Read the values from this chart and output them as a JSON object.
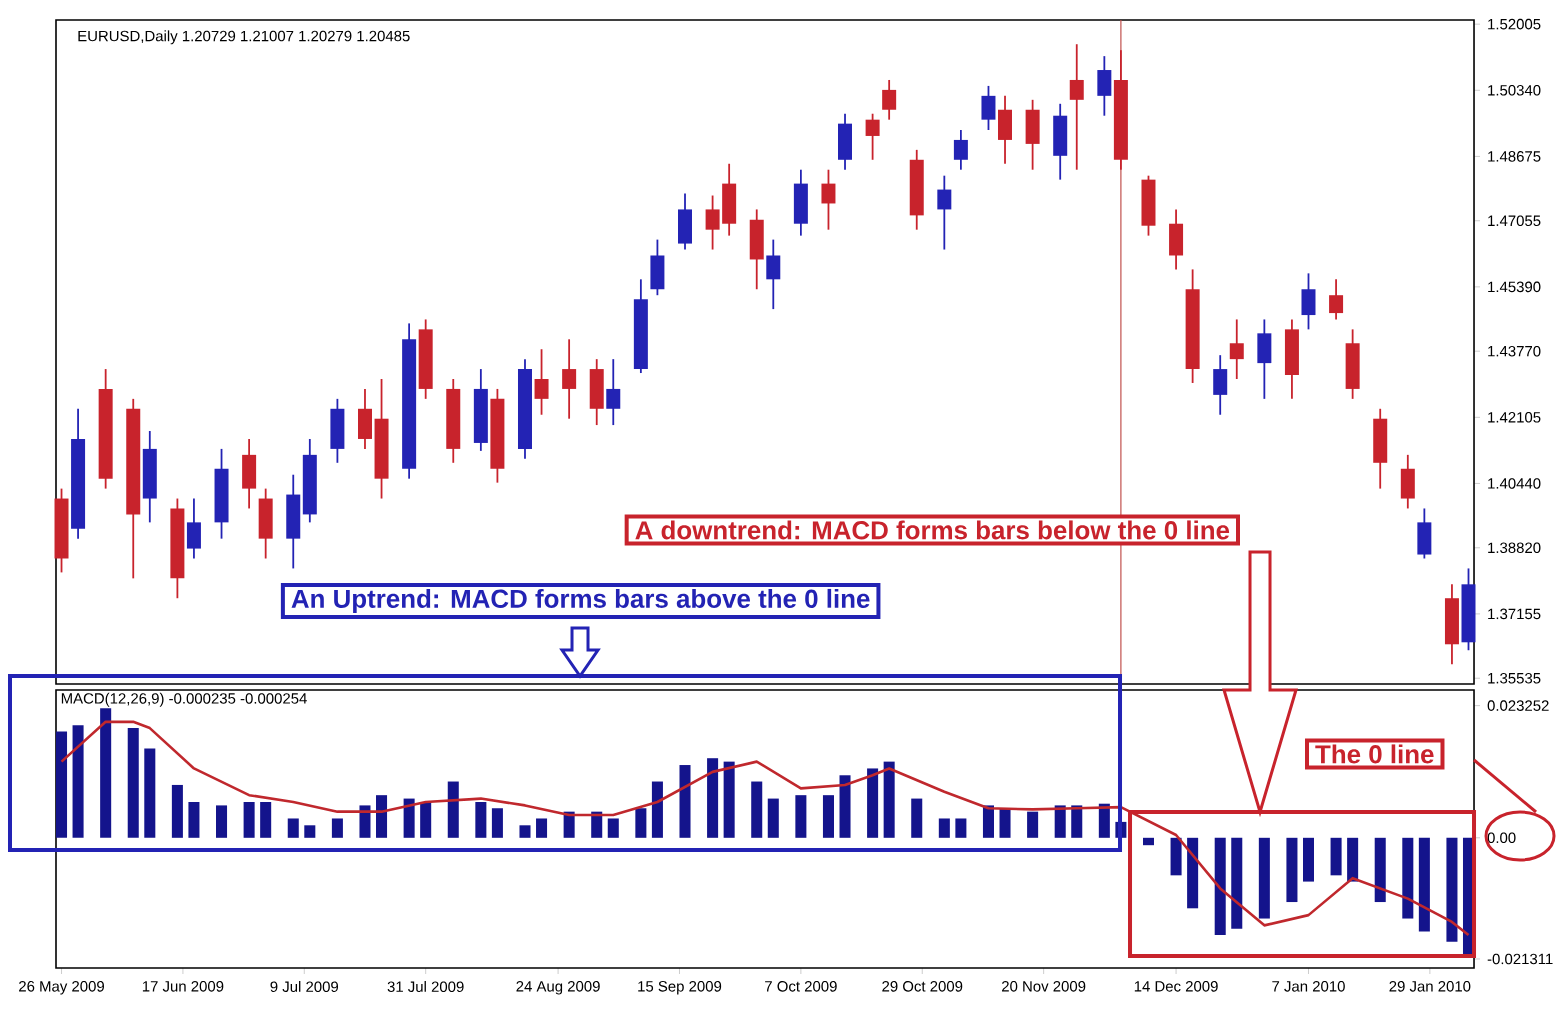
{
  "chart_data": [
    {
      "type": "candlestick",
      "title": "EURUSD,Daily  1.20729 1.21007 1.20279 1.20485",
      "x": [
        "2009-05-26",
        "2009-05-29",
        "2009-06-03",
        "2009-06-08",
        "2009-06-11",
        "2009-06-16",
        "2009-06-19",
        "2009-06-24",
        "2009-06-29",
        "2009-07-02",
        "2009-07-07",
        "2009-07-10",
        "2009-07-15",
        "2009-07-20",
        "2009-07-23",
        "2009-07-28",
        "2009-07-31",
        "2009-08-05",
        "2009-08-10",
        "2009-08-13",
        "2009-08-18",
        "2009-08-21",
        "2009-08-26",
        "2009-08-31",
        "2009-09-03",
        "2009-09-08",
        "2009-09-11",
        "2009-09-16",
        "2009-09-21",
        "2009-09-24",
        "2009-09-29",
        "2009-10-02",
        "2009-10-07",
        "2009-10-12",
        "2009-10-15",
        "2009-10-20",
        "2009-10-23",
        "2009-10-28",
        "2009-11-02",
        "2009-11-05",
        "2009-11-10",
        "2009-11-13",
        "2009-11-18",
        "2009-11-23",
        "2009-11-26",
        "2009-12-01",
        "2009-12-04",
        "2009-12-09",
        "2009-12-14",
        "2009-12-17",
        "2009-12-22",
        "2009-12-25",
        "2009-12-30",
        "2010-01-04",
        "2010-01-07",
        "2010-01-12",
        "2010-01-15",
        "2010-01-20",
        "2010-01-25",
        "2010-01-28",
        "2010-02-02",
        "2010-02-05"
      ],
      "ohlc": [
        [
          1.4006,
          1.4031,
          1.382,
          1.3855
        ],
        [
          1.393,
          1.4232,
          1.3905,
          1.4156
        ],
        [
          1.4282,
          1.4332,
          1.4031,
          1.4056
        ],
        [
          1.4232,
          1.4257,
          1.3805,
          1.3966
        ],
        [
          1.4006,
          1.4176,
          1.3946,
          1.4131
        ],
        [
          1.3981,
          1.4006,
          1.3755,
          1.3805
        ],
        [
          1.388,
          1.4006,
          1.3855,
          1.3946
        ],
        [
          1.3946,
          1.4131,
          1.3905,
          1.4081
        ],
        [
          1.4116,
          1.4156,
          1.3981,
          1.4031
        ],
        [
          1.4006,
          1.4031,
          1.3855,
          1.3905
        ],
        [
          1.3905,
          1.4066,
          1.383,
          1.4016
        ],
        [
          1.3966,
          1.4156,
          1.3946,
          1.4116
        ],
        [
          1.4131,
          1.4257,
          1.4096,
          1.4232
        ],
        [
          1.4232,
          1.4282,
          1.4131,
          1.4156
        ],
        [
          1.4207,
          1.4307,
          1.4006,
          1.4056
        ],
        [
          1.4081,
          1.4447,
          1.4056,
          1.4407
        ],
        [
          1.4432,
          1.4457,
          1.4257,
          1.4282
        ],
        [
          1.4282,
          1.4307,
          1.4096,
          1.4131
        ],
        [
          1.4146,
          1.4332,
          1.4126,
          1.4282
        ],
        [
          1.4257,
          1.4282,
          1.4046,
          1.4081
        ],
        [
          1.4131,
          1.4357,
          1.4106,
          1.4332
        ],
        [
          1.4307,
          1.4382,
          1.4217,
          1.4257
        ],
        [
          1.4332,
          1.4407,
          1.4207,
          1.4282
        ],
        [
          1.4332,
          1.4357,
          1.4191,
          1.4232
        ],
        [
          1.4232,
          1.4357,
          1.4191,
          1.4282
        ],
        [
          1.4332,
          1.4558,
          1.4322,
          1.4508
        ],
        [
          1.4533,
          1.4658,
          1.4518,
          1.4618
        ],
        [
          1.4648,
          1.4774,
          1.4633,
          1.4734
        ],
        [
          1.4734,
          1.4769,
          1.4633,
          1.4683
        ],
        [
          1.4799,
          1.4849,
          1.4668,
          1.4698
        ],
        [
          1.4708,
          1.4734,
          1.4533,
          1.4608
        ],
        [
          1.4558,
          1.4658,
          1.4483,
          1.4618
        ],
        [
          1.4698,
          1.4834,
          1.4668,
          1.4799
        ],
        [
          1.4799,
          1.4834,
          1.4683,
          1.4749
        ],
        [
          1.4859,
          1.4975,
          1.4834,
          1.495
        ],
        [
          1.496,
          1.4975,
          1.4859,
          1.4919
        ],
        [
          1.5035,
          1.506,
          1.496,
          1.4985
        ],
        [
          1.4859,
          1.4884,
          1.4683,
          1.4719
        ],
        [
          1.4734,
          1.4819,
          1.4633,
          1.4784
        ],
        [
          1.4859,
          1.4934,
          1.4834,
          1.4909
        ],
        [
          1.496,
          1.5045,
          1.4934,
          1.502
        ],
        [
          1.4985,
          1.502,
          1.4849,
          1.4909
        ],
        [
          1.4985,
          1.501,
          1.4834,
          1.4899
        ],
        [
          1.4869,
          1.5,
          1.4809,
          1.497
        ],
        [
          1.506,
          1.515,
          1.4834,
          1.501
        ],
        [
          1.502,
          1.512,
          1.497,
          1.5085
        ],
        [
          1.506,
          1.5135,
          1.4834,
          1.4859
        ],
        [
          1.4809,
          1.4819,
          1.4668,
          1.4693
        ],
        [
          1.4698,
          1.4734,
          1.4583,
          1.4618
        ],
        [
          1.4533,
          1.4583,
          1.4297,
          1.4332
        ],
        [
          1.4267,
          1.4367,
          1.4217,
          1.4332
        ],
        [
          1.4397,
          1.4457,
          1.4307,
          1.4357
        ],
        [
          1.4347,
          1.4457,
          1.4257,
          1.4422
        ],
        [
          1.4432,
          1.4457,
          1.4257,
          1.4317
        ],
        [
          1.4468,
          1.4573,
          1.4432,
          1.4533
        ],
        [
          1.4518,
          1.4558,
          1.4457,
          1.4473
        ],
        [
          1.4397,
          1.4432,
          1.4257,
          1.4282
        ],
        [
          1.4207,
          1.4232,
          1.4031,
          1.4096
        ],
        [
          1.4081,
          1.4116,
          1.3981,
          1.4006
        ],
        [
          1.3865,
          1.3981,
          1.3855,
          1.3946
        ],
        [
          1.3755,
          1.379,
          1.3589,
          1.3639
        ],
        [
          1.3644,
          1.383,
          1.3624,
          1.379
        ]
      ],
      "xlim": [
        "2009-05-25",
        "2010-02-06"
      ],
      "ylim": [
        1.3539,
        1.5211
      ],
      "yticks": [
        1.35535,
        1.37155,
        {
          "value": 1.3882,
          "label": "1.38820"
        },
        {
          "value": 1.4044,
          "label": "1.40440"
        },
        1.42105,
        {
          "value": 1.4377,
          "label": "1.43770"
        },
        {
          "value": 1.4539,
          "label": "1.45390"
        },
        1.47055,
        1.48675,
        {
          "value": 1.5034,
          "label": "1.50340"
        },
        1.52005
      ],
      "tick_labels": "y",
      "ref_lines": [
        {
          "axis": "x",
          "value": "2009-12-04",
          "color": "#c0504d"
        }
      ],
      "annotations": [
        "An Uptrend: MACD forms bars above the 0 line",
        "A downtrend: MACD forms bars below the 0 line"
      ]
    },
    {
      "type": "bar",
      "x": [
        "2009-05-26",
        "2009-05-29",
        "2009-06-03",
        "2009-06-08",
        "2009-06-11",
        "2009-06-16",
        "2009-06-19",
        "2009-06-24",
        "2009-06-29",
        "2009-07-02",
        "2009-07-07",
        "2009-07-10",
        "2009-07-15",
        "2009-07-20",
        "2009-07-23",
        "2009-07-28",
        "2009-07-31",
        "2009-08-05",
        "2009-08-10",
        "2009-08-13",
        "2009-08-18",
        "2009-08-21",
        "2009-08-26",
        "2009-08-31",
        "2009-09-03",
        "2009-09-08",
        "2009-09-11",
        "2009-09-16",
        "2009-09-21",
        "2009-09-24",
        "2009-09-29",
        "2009-10-02",
        "2009-10-07",
        "2009-10-12",
        "2009-10-15",
        "2009-10-20",
        "2009-10-23",
        "2009-10-28",
        "2009-11-02",
        "2009-11-05",
        "2009-11-10",
        "2009-11-13",
        "2009-11-18",
        "2009-11-23",
        "2009-11-26",
        "2009-12-01",
        "2009-12-04",
        "2009-12-09",
        "2009-12-14",
        "2009-12-17",
        "2009-12-22",
        "2009-12-25",
        "2009-12-30",
        "2010-01-04",
        "2010-01-07",
        "2010-01-12",
        "2010-01-15",
        "2010-01-20",
        "2010-01-25",
        "2010-01-28",
        "2010-02-02",
        "2010-02-05"
      ],
      "series": [
        {
          "type": "bar",
          "color": "#14148c",
          "values": [
            0.0187,
            0.0198,
            0.0228,
            0.0193,
            0.0157,
            0.0093,
            0.0063,
            0.0057,
            0.0063,
            0.0063,
            0.0034,
            0.0022,
            0.0034,
            0.0057,
            0.0075,
            0.0069,
            0.0063,
            0.0099,
            0.0063,
            0.0052,
            0.0022,
            0.0034,
            0.0046,
            0.0046,
            0.0034,
            0.0052,
            0.0099,
            0.0128,
            0.014,
            0.0134,
            0.0099,
            0.0069,
            0.0075,
            0.0075,
            0.011,
            0.0122,
            0.0134,
            0.0069,
            0.0034,
            0.0034,
            0.0057,
            0.0052,
            0.0046,
            0.0057,
            0.0057,
            0.006,
            0.0028,
            -0.0013,
            -0.0066,
            -0.0124,
            -0.0171,
            -0.016,
            -0.0142,
            -0.0113,
            -0.0077,
            -0.0066,
            -0.0077,
            -0.0113,
            -0.0142,
            -0.0165,
            -0.0183,
            -0.0207
          ]
        },
        {
          "type": "line",
          "color": "#c0282d",
          "x": [
            "2009-05-26",
            "2009-06-03",
            "2009-06-08",
            "2009-06-11",
            "2009-06-19",
            "2009-06-29",
            "2009-07-07",
            "2009-07-15",
            "2009-07-23",
            "2009-07-31",
            "2009-08-10",
            "2009-08-18",
            "2009-08-26",
            "2009-09-03",
            "2009-09-11",
            "2009-09-21",
            "2009-09-29",
            "2009-10-07",
            "2009-10-15",
            "2009-10-20",
            "2009-10-23",
            "2009-11-02",
            "2009-11-10",
            "2009-11-18",
            "2009-11-26",
            "2009-12-04",
            "2009-12-14",
            "2009-12-22",
            "2009-12-30",
            "2010-01-07",
            "2010-01-15",
            "2010-01-25",
            "2010-02-02",
            "2010-02-05"
          ],
          "values": [
            0.0134,
            0.0204,
            0.0204,
            0.0193,
            0.0122,
            0.0075,
            0.0063,
            0.0046,
            0.0046,
            0.0063,
            0.0069,
            0.0057,
            0.004,
            0.004,
            0.0063,
            0.0116,
            0.0134,
            0.0087,
            0.0093,
            0.011,
            0.0122,
            0.0081,
            0.0052,
            0.005,
            0.0052,
            0.0054,
            0.0005,
            -0.0089,
            -0.0154,
            -0.0136,
            -0.0071,
            -0.0107,
            -0.0148,
            -0.0171
          ]
        }
      ],
      "xlim": [
        "2009-05-25",
        "2010-02-06"
      ],
      "ylim": [
        -0.0229,
        0.026
      ],
      "xticks": [
        {
          "value": "2009-05-26",
          "label": "26 May 2009"
        },
        {
          "value": "2009-06-17",
          "label": "17 Jun 2009"
        },
        {
          "value": "2009-07-09",
          "label": "9 Jul 2009"
        },
        {
          "value": "2009-07-31",
          "label": "31 Jul 2009"
        },
        {
          "value": "2009-08-24",
          "label": "24 Aug 2009"
        },
        {
          "value": "2009-09-15",
          "label": "15 Sep 2009"
        },
        {
          "value": "2009-10-07",
          "label": "7 Oct 2009"
        },
        {
          "value": "2009-10-29",
          "label": "29 Oct 2009"
        },
        {
          "value": "2009-11-20",
          "label": "20 Nov 2009"
        },
        {
          "value": "2009-12-14",
          "label": "14 Dec 2009"
        },
        {
          "value": "2010-01-07",
          "label": "7 Jan 2010"
        },
        {
          "value": "2010-01-29",
          "label": "29 Jan 2010"
        }
      ],
      "yticks": [
        -0.021311,
        {
          "value": 0,
          "label": "0.00"
        },
        0.023252
      ],
      "annotations": [
        "MACD(12,26,9) -0.000235 -0.000254",
        "The 0 line"
      ]
    }
  ]
}
